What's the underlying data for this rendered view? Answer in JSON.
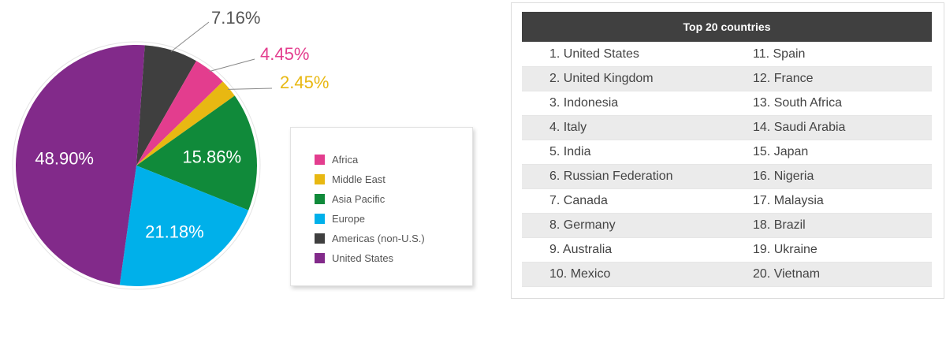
{
  "colors": {
    "africa": "#e33d8e",
    "middle_east": "#e8b812",
    "asia_pacific": "#108a3a",
    "europe": "#00b0ea",
    "americas": "#3f3f3f",
    "united_states": "#822a8a"
  },
  "chart_data": {
    "type": "pie",
    "slices": [
      {
        "name": "Americas (non-U.S.)",
        "value": 7.16,
        "label": "7.16%",
        "color": "#3f3f3f",
        "label_color": "#555555"
      },
      {
        "name": "Africa",
        "value": 4.45,
        "label": "4.45%",
        "color": "#e33d8e",
        "label_color": "#e33d8e"
      },
      {
        "name": "Middle East",
        "value": 2.45,
        "label": "2.45%",
        "color": "#e8b812",
        "label_color": "#e8b812"
      },
      {
        "name": "Asia Pacific",
        "value": 15.86,
        "label": "15.86%",
        "color": "#108a3a",
        "label_color": "#ffffff"
      },
      {
        "name": "Europe",
        "value": 21.18,
        "label": "21.18%",
        "color": "#00b0ea",
        "label_color": "#ffffff"
      },
      {
        "name": "United States",
        "value": 48.9,
        "label": "48.90%",
        "color": "#822a8a",
        "label_color": "#ffffff"
      }
    ],
    "legend": {
      "placement": "right",
      "items": [
        {
          "label": "Africa",
          "color": "#e33d8e"
        },
        {
          "label": "Middle East",
          "color": "#e8b812"
        },
        {
          "label": "Asia Pacific",
          "color": "#108a3a"
        },
        {
          "label": "Europe",
          "color": "#00b0ea"
        },
        {
          "label": "Americas (non-U.S.)",
          "color": "#3f3f3f"
        },
        {
          "label": "United States",
          "color": "#822a8a"
        }
      ]
    }
  },
  "table": {
    "title": "Top 20 countries",
    "rows": [
      {
        "left": "1. United States",
        "right": "11. Spain"
      },
      {
        "left": "2. United Kingdom",
        "right": "12. France"
      },
      {
        "left": "3. Indonesia",
        "right": "13. South Africa"
      },
      {
        "left": "4. Italy",
        "right": "14. Saudi Arabia"
      },
      {
        "left": "5. India",
        "right": "15. Japan"
      },
      {
        "left": "6. Russian Federation",
        "right": "16. Nigeria"
      },
      {
        "left": "7. Canada",
        "right": "17. Malaysia"
      },
      {
        "left": "8. Germany",
        "right": "18. Brazil"
      },
      {
        "left": "9. Australia",
        "right": "19. Ukraine"
      },
      {
        "left": "10. Mexico",
        "right": "20. Vietnam"
      }
    ]
  }
}
